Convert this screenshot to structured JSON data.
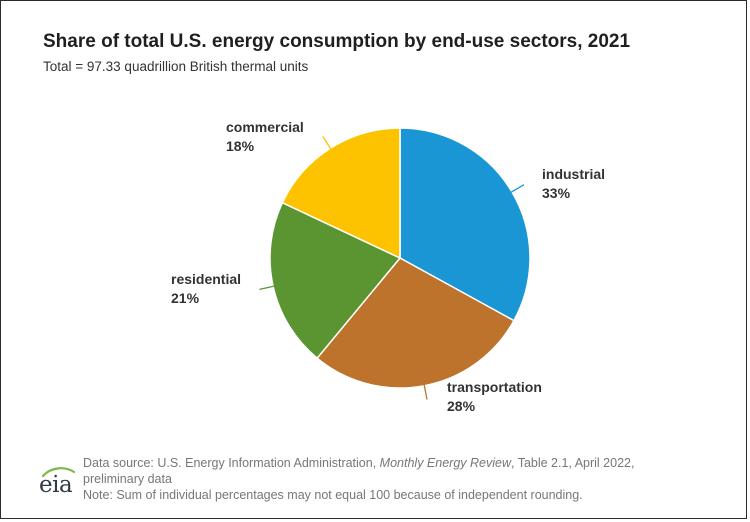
{
  "chart_data": {
    "type": "pie",
    "title": "Share of total U.S. energy consumption by end-use sectors, 2021",
    "subtitle": "Total = 97.33 quadrillion British thermal units",
    "slices": [
      {
        "name": "industrial",
        "value": 33,
        "label": "33%",
        "color": "#1a96d4"
      },
      {
        "name": "transportation",
        "value": 28,
        "label": "28%",
        "color": "#bd732b"
      },
      {
        "name": "residential",
        "value": 21,
        "label": "21%",
        "color": "#5b9532"
      },
      {
        "name": "commercial",
        "value": 18,
        "label": "18%",
        "color": "#fdc300"
      }
    ],
    "start_angle_deg": 0,
    "direction": "clockwise",
    "legend": "none"
  },
  "footnotes": {
    "source_prefix": "Data source: U.S. Energy Information Administration, ",
    "source_italic": "Monthly Energy Review",
    "source_suffix": ", Table 2.1, April 2022,",
    "source_line2": "preliminary data",
    "note": "Note: Sum of individual percentages may not equal 100 because of independent rounding."
  },
  "logo": {
    "text": "eia",
    "icon": "eia-logo-icon",
    "accent_color": "#7fb848"
  }
}
